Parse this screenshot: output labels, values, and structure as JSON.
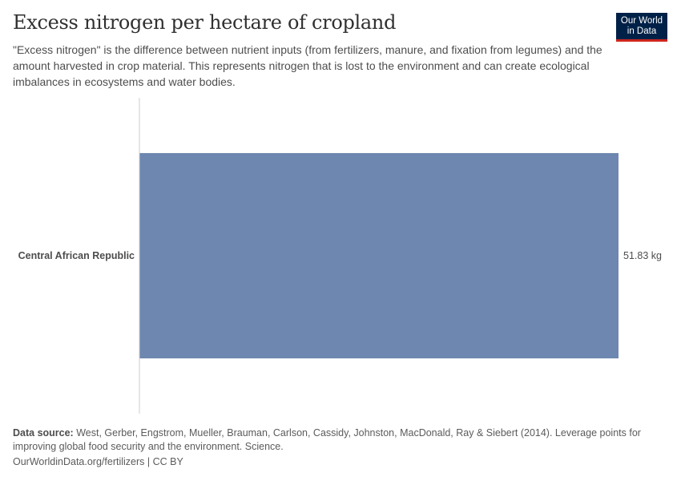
{
  "header": {
    "title": "Excess nitrogen per hectare of cropland",
    "subtitle": "\"Excess nitrogen\" is the difference between nutrient inputs (from fertilizers, manure, and fixation from legumes) and the amount harvested in crop material. This represents nitrogen that is lost to the environment and can create ecological imbalances in ecosystems and water bodies.",
    "logo_line1": "Our World",
    "logo_line2": "in Data"
  },
  "chart_data": {
    "type": "bar",
    "orientation": "horizontal",
    "categories": [
      "Central African Republic"
    ],
    "values": [
      51.83
    ],
    "value_labels": [
      "51.83 kg"
    ],
    "unit": "kg",
    "xlim": [
      0,
      51.83
    ],
    "bar_color": "#6d87b0",
    "grid": false
  },
  "footer": {
    "source_label": "Data source:",
    "source_text": " West, Gerber, Engstrom, Mueller, Brauman, Carlson, Cassidy, Johnston, MacDonald, Ray & Siebert (2014). Leverage points for improving global food security and the environment. Science.",
    "link_text": "OurWorldinData.org/fertilizers | CC BY"
  }
}
